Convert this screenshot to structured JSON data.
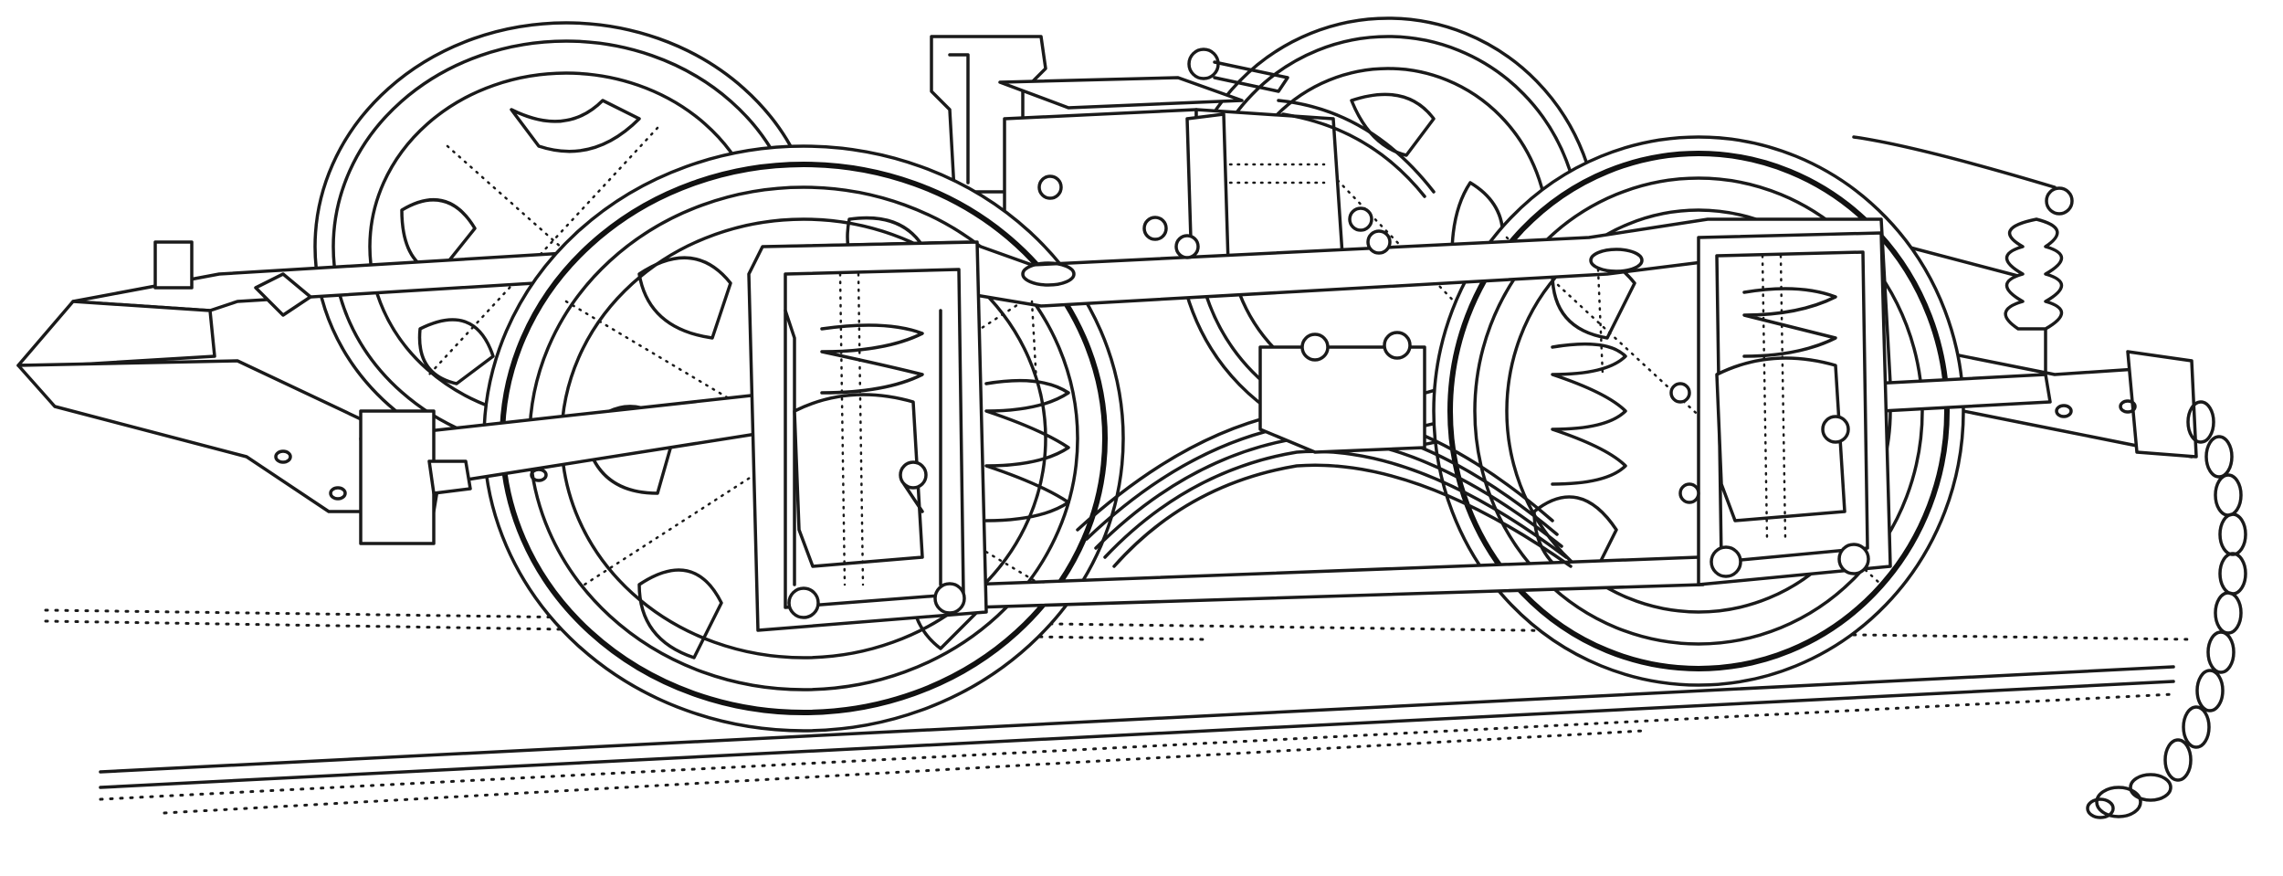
{
  "illustration": {
    "style": "black line engraving on white",
    "colors": {
      "ink": "#1a1a1a",
      "paper": "#ffffff"
    }
  }
}
